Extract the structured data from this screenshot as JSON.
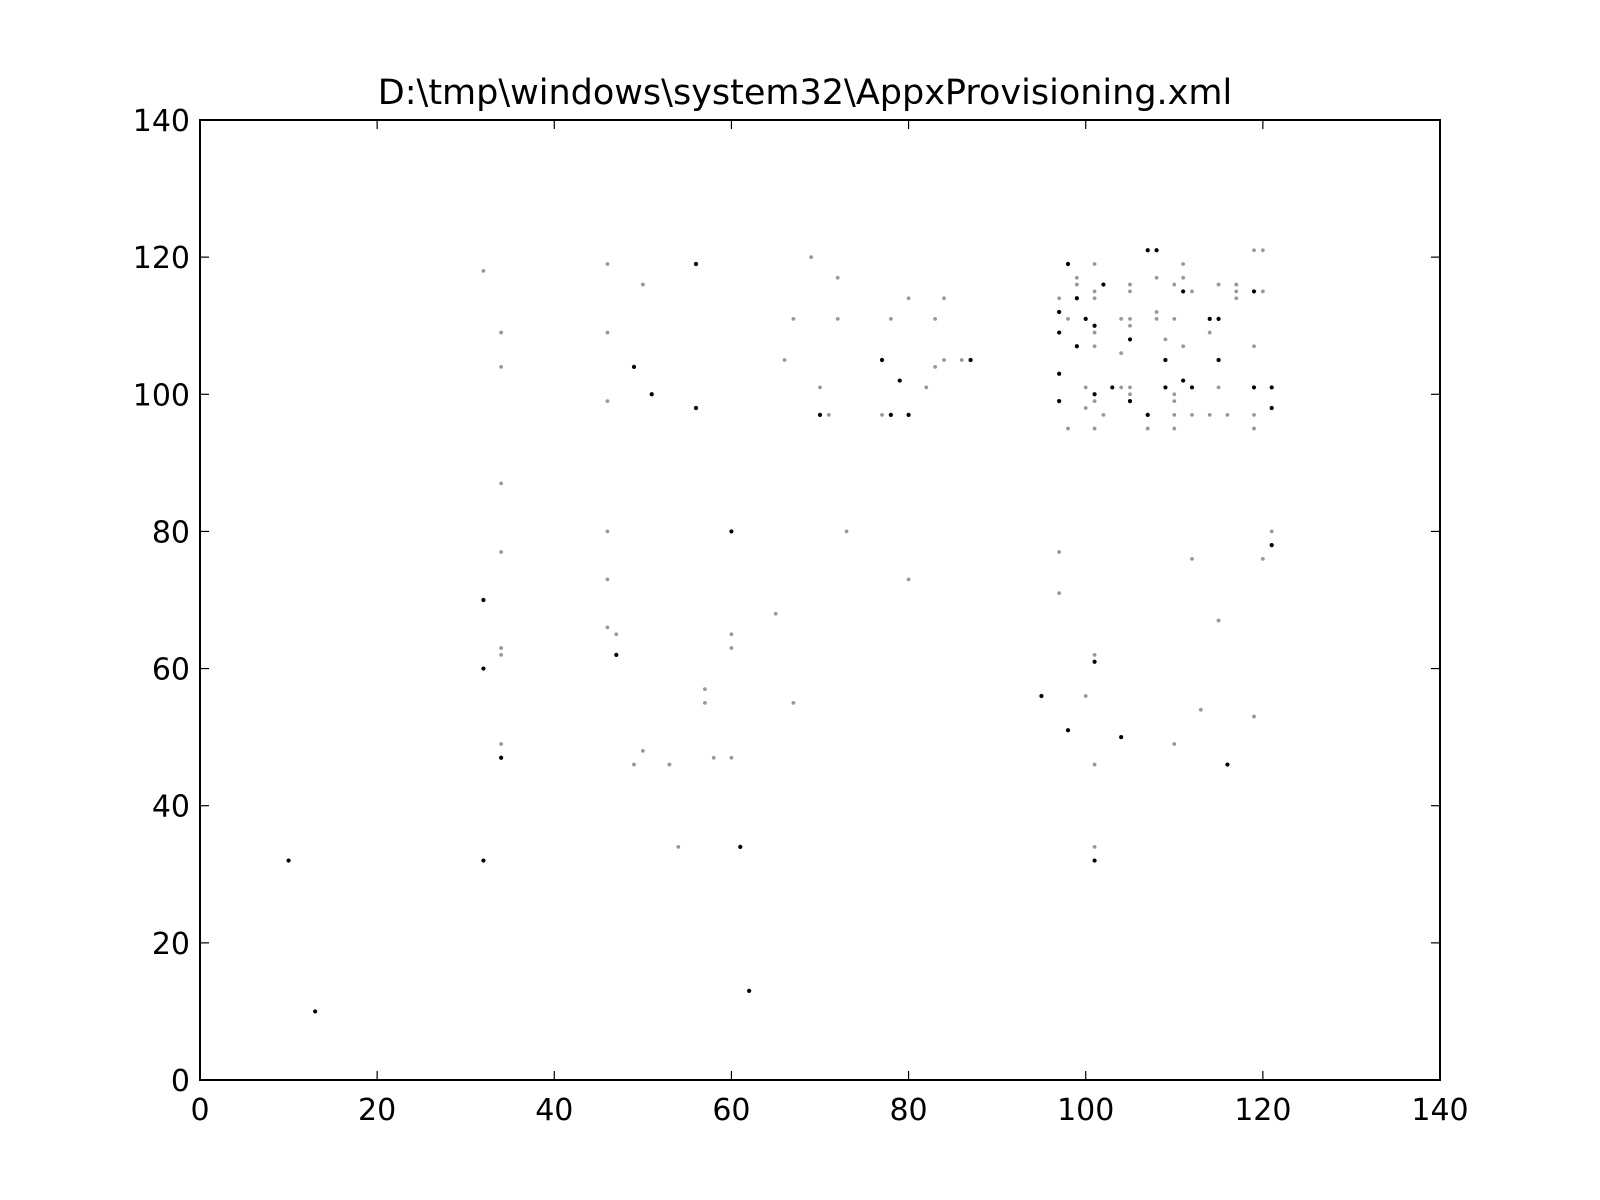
{
  "chart_data": {
    "type": "scatter",
    "title": "D:\\tmp\\windows\\system32\\AppxProvisioning.xml",
    "xlabel": "",
    "ylabel": "",
    "xlim": [
      0,
      140
    ],
    "ylim": [
      0,
      140
    ],
    "xticks": [
      0,
      20,
      40,
      60,
      80,
      100,
      120,
      140
    ],
    "yticks": [
      0,
      20,
      40,
      60,
      80,
      100,
      120,
      140
    ],
    "grid": false,
    "colors": {
      "dark": "#000000",
      "light": "#999999"
    },
    "series": [
      {
        "color": "#000000",
        "points": [
          [
            10,
            32
          ],
          [
            13,
            10
          ],
          [
            32,
            70
          ],
          [
            32,
            60
          ],
          [
            32,
            32
          ],
          [
            34,
            47
          ],
          [
            47,
            62
          ],
          [
            49,
            104
          ],
          [
            51,
            100
          ],
          [
            56,
            119
          ],
          [
            56,
            98
          ],
          [
            60,
            80
          ],
          [
            61,
            34
          ],
          [
            62,
            13
          ],
          [
            70,
            97
          ],
          [
            77,
            105
          ],
          [
            78,
            97
          ],
          [
            79,
            102
          ],
          [
            80,
            97
          ],
          [
            87,
            105
          ],
          [
            95,
            56
          ],
          [
            97,
            112
          ],
          [
            97,
            109
          ],
          [
            97,
            103
          ],
          [
            97,
            99
          ],
          [
            98,
            119
          ],
          [
            98,
            51
          ],
          [
            99,
            114
          ],
          [
            99,
            107
          ],
          [
            100,
            111
          ],
          [
            101,
            110
          ],
          [
            101,
            61
          ],
          [
            101,
            32
          ],
          [
            102,
            116
          ],
          [
            103,
            101
          ],
          [
            104,
            50
          ],
          [
            105,
            108
          ],
          [
            105,
            99
          ],
          [
            107,
            121
          ],
          [
            107,
            97
          ],
          [
            108,
            121
          ],
          [
            109,
            105
          ],
          [
            109,
            101
          ],
          [
            111,
            102
          ],
          [
            111,
            115
          ],
          [
            112,
            101
          ],
          [
            114,
            111
          ],
          [
            115,
            111
          ],
          [
            115,
            105
          ],
          [
            116,
            46
          ],
          [
            119,
            101
          ],
          [
            119,
            115
          ],
          [
            121,
            101
          ],
          [
            121,
            98
          ],
          [
            121,
            78
          ],
          [
            101,
            100
          ]
        ]
      },
      {
        "color": "#999999",
        "points": [
          [
            32,
            118
          ],
          [
            34,
            109
          ],
          [
            34,
            104
          ],
          [
            34,
            87
          ],
          [
            34,
            77
          ],
          [
            34,
            63
          ],
          [
            34,
            62
          ],
          [
            34,
            49
          ],
          [
            46,
            119
          ],
          [
            46,
            109
          ],
          [
            46,
            99
          ],
          [
            46,
            80
          ],
          [
            46,
            73
          ],
          [
            46,
            66
          ],
          [
            47,
            65
          ],
          [
            49,
            46
          ],
          [
            50,
            116
          ],
          [
            50,
            48
          ],
          [
            53,
            46
          ],
          [
            54,
            34
          ],
          [
            57,
            57
          ],
          [
            57,
            55
          ],
          [
            58,
            47
          ],
          [
            60,
            65
          ],
          [
            60,
            63
          ],
          [
            60,
            47
          ],
          [
            65,
            68
          ],
          [
            66,
            105
          ],
          [
            67,
            111
          ],
          [
            67,
            55
          ],
          [
            69,
            120
          ],
          [
            70,
            101
          ],
          [
            71,
            97
          ],
          [
            72,
            117
          ],
          [
            72,
            111
          ],
          [
            73,
            80
          ],
          [
            77,
            97
          ],
          [
            78,
            111
          ],
          [
            80,
            114
          ],
          [
            80,
            73
          ],
          [
            82,
            101
          ],
          [
            83,
            111
          ],
          [
            83,
            104
          ],
          [
            84,
            114
          ],
          [
            84,
            105
          ],
          [
            86,
            105
          ],
          [
            97,
            114
          ],
          [
            97,
            77
          ],
          [
            97,
            71
          ],
          [
            98,
            111
          ],
          [
            98,
            95
          ],
          [
            99,
            117
          ],
          [
            99,
            116
          ],
          [
            100,
            98
          ],
          [
            100,
            101
          ],
          [
            100,
            56
          ],
          [
            101,
            119
          ],
          [
            101,
            115
          ],
          [
            101,
            114
          ],
          [
            101,
            109
          ],
          [
            101,
            107
          ],
          [
            101,
            99
          ],
          [
            101,
            95
          ],
          [
            101,
            62
          ],
          [
            101,
            46
          ],
          [
            101,
            34
          ],
          [
            102,
            97
          ],
          [
            104,
            111
          ],
          [
            104,
            106
          ],
          [
            104,
            101
          ],
          [
            105,
            116
          ],
          [
            105,
            115
          ],
          [
            105,
            111
          ],
          [
            105,
            110
          ],
          [
            105,
            101
          ],
          [
            105,
            100
          ],
          [
            107,
            95
          ],
          [
            108,
            117
          ],
          [
            108,
            112
          ],
          [
            108,
            111
          ],
          [
            109,
            108
          ],
          [
            110,
            116
          ],
          [
            110,
            111
          ],
          [
            110,
            100
          ],
          [
            110,
            99
          ],
          [
            110,
            97
          ],
          [
            110,
            95
          ],
          [
            110,
            49
          ],
          [
            111,
            119
          ],
          [
            111,
            117
          ],
          [
            111,
            107
          ],
          [
            112,
            115
          ],
          [
            112,
            97
          ],
          [
            112,
            76
          ],
          [
            113,
            54
          ],
          [
            114,
            109
          ],
          [
            114,
            97
          ],
          [
            115,
            116
          ],
          [
            115,
            101
          ],
          [
            115,
            67
          ],
          [
            116,
            97
          ],
          [
            117,
            116
          ],
          [
            117,
            115
          ],
          [
            117,
            114
          ],
          [
            119,
            121
          ],
          [
            119,
            107
          ],
          [
            119,
            97
          ],
          [
            119,
            95
          ],
          [
            119,
            53
          ],
          [
            120,
            121
          ],
          [
            120,
            115
          ],
          [
            120,
            76
          ],
          [
            121,
            80
          ]
        ]
      }
    ]
  }
}
